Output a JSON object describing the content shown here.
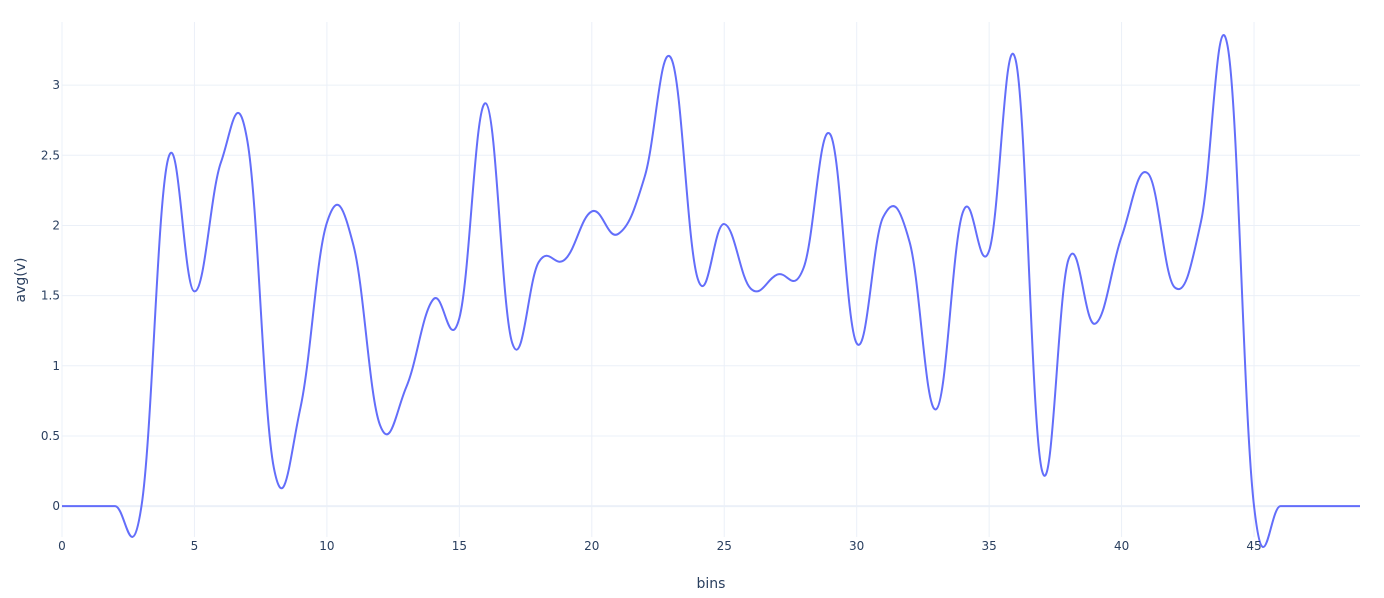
{
  "chart_data": {
    "type": "line",
    "xlabel": "bins",
    "ylabel": "avg(v)",
    "xlim": [
      0,
      49
    ],
    "ylim": [
      -0.22,
      3.45
    ],
    "xticks": [
      0,
      5,
      10,
      15,
      20,
      25,
      30,
      35,
      40,
      45
    ],
    "xtick_labels": [
      "0",
      "5",
      "10",
      "15",
      "20",
      "25",
      "30",
      "35",
      "40",
      "45"
    ],
    "yticks": [
      0,
      0.5,
      1,
      1.5,
      2,
      2.5,
      3
    ],
    "ytick_labels": [
      "0",
      "0.5",
      "1",
      "1.5",
      "2",
      "2.5",
      "3"
    ],
    "grid": true,
    "line_shape": "spline",
    "series": [
      {
        "color": "#636efa",
        "x": [
          0,
          1,
          2,
          3,
          4,
          5,
          6,
          7,
          8,
          9,
          10,
          11,
          12,
          13,
          14,
          15,
          16,
          17,
          18,
          19,
          20,
          21,
          22,
          23,
          24,
          25,
          26,
          27,
          28,
          29,
          30,
          31,
          32,
          33,
          34,
          35,
          36,
          37,
          38,
          39,
          40,
          41,
          42,
          43,
          44,
          45,
          46,
          47,
          48,
          49
        ],
        "y": [
          0,
          0,
          0,
          0,
          2.47,
          1.53,
          2.45,
          2.6,
          0.27,
          0.7,
          2.02,
          1.86,
          0.58,
          0.85,
          1.47,
          1.34,
          2.87,
          1.16,
          1.74,
          1.76,
          2.1,
          1.94,
          2.35,
          3.19,
          1.62,
          2.01,
          1.55,
          1.65,
          1.7,
          2.65,
          1.16,
          2.06,
          1.88,
          0.69,
          2.09,
          1.82,
          3.18,
          0.25,
          1.76,
          1.3,
          1.92,
          2.37,
          1.56,
          2.03,
          3.28,
          0,
          0,
          0,
          0,
          0
        ]
      }
    ]
  }
}
